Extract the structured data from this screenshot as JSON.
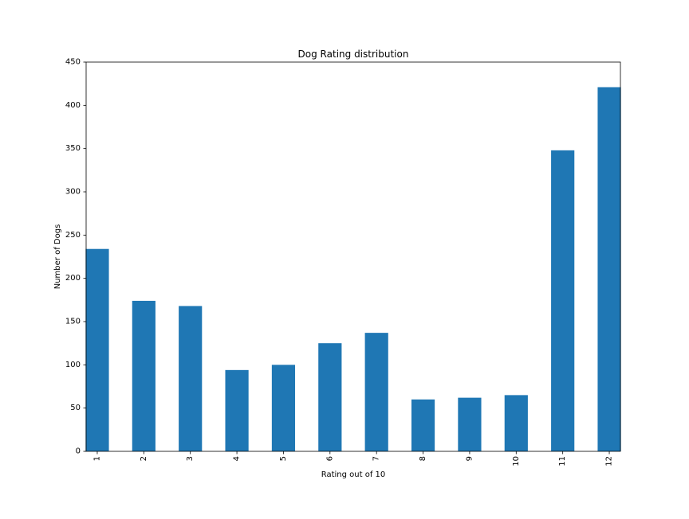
{
  "chart_data": {
    "type": "bar",
    "title": "Dog Rating distribution",
    "xlabel": "Rating out of 10",
    "ylabel": "Number of Dogs",
    "categories": [
      "1",
      "2",
      "3",
      "4",
      "5",
      "6",
      "7",
      "8",
      "9",
      "10",
      "11",
      "12"
    ],
    "values": [
      234,
      174,
      168,
      94,
      100,
      125,
      137,
      60,
      62,
      65,
      348,
      421
    ],
    "ylim": [
      0,
      450
    ],
    "yticks": [
      0,
      50,
      100,
      150,
      200,
      250,
      300,
      350,
      400,
      450
    ],
    "grid": false,
    "legend": "none",
    "bar_color": "#1f77b4"
  }
}
